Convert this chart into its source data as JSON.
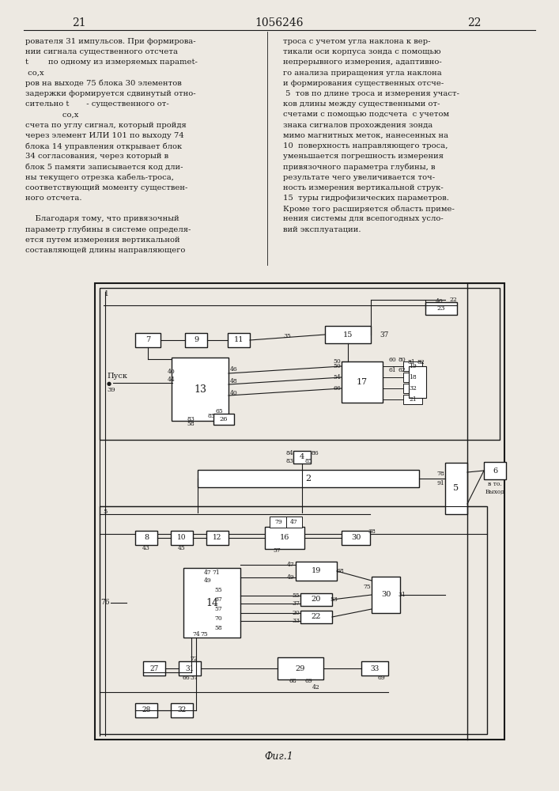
{
  "page_number_left": "21",
  "page_number_center": "1056246",
  "page_number_right": "22",
  "bg_color": "#ede9e2",
  "text_color": "#1a1a1a",
  "line_color": "#1a1a1a",
  "fig_caption": "Фиг.1"
}
